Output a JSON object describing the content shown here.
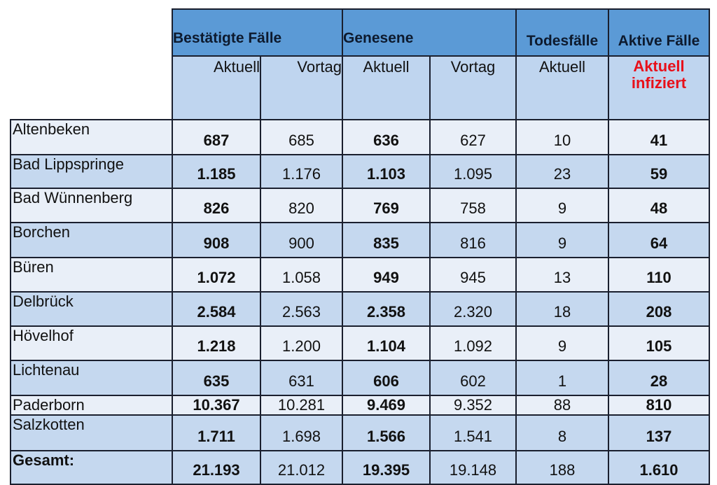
{
  "headers": {
    "group1": "Bestätigte Fälle",
    "group2": "Genesene",
    "group3": "Todesfälle",
    "group4": "Aktive Fälle",
    "sub": [
      "Aktuell",
      "Vortag",
      "Aktuell",
      "Vortag",
      "Aktuell"
    ],
    "active_sub_line1": "Aktuell",
    "active_sub_line2": "infiziert"
  },
  "colors": {
    "header": "#5b9ad6",
    "subheader": "#bfd5ef",
    "row_light": "#e9eff8",
    "row_mid": "#c5d8ef",
    "highlight": "#e8101a"
  },
  "rows": [
    {
      "name": "Altenbeken",
      "values": [
        "687",
        "685",
        "636",
        "627",
        "10",
        "41"
      ]
    },
    {
      "name": "Bad Lippspringe",
      "values": [
        "1.185",
        "1.176",
        "1.103",
        "1.095",
        "23",
        "59"
      ]
    },
    {
      "name": "Bad Wünnenberg",
      "values": [
        "826",
        "820",
        "769",
        "758",
        "9",
        "48"
      ]
    },
    {
      "name": "Borchen",
      "values": [
        "908",
        "900",
        "835",
        "816",
        "9",
        "64"
      ]
    },
    {
      "name": "Büren",
      "values": [
        "1.072",
        "1.058",
        "949",
        "945",
        "13",
        "110"
      ]
    },
    {
      "name": "Delbrück",
      "values": [
        "2.584",
        "2.563",
        "2.358",
        "2.320",
        "18",
        "208"
      ]
    },
    {
      "name": "Hövelhof",
      "values": [
        "1.218",
        "1.200",
        "1.104",
        "1.092",
        "9",
        "105"
      ]
    },
    {
      "name": "Lichtenau",
      "values": [
        "635",
        "631",
        "606",
        "602",
        "1",
        "28"
      ]
    },
    {
      "name": "Paderborn",
      "values": [
        "10.367",
        "10.281",
        "9.469",
        "9.352",
        "88",
        "810"
      ]
    },
    {
      "name": "Salzkotten",
      "values": [
        "1.711",
        "1.698",
        "1.566",
        "1.541",
        "8",
        "137"
      ]
    },
    {
      "name": "Gesamt:",
      "values": [
        "21.193",
        "21.012",
        "19.395",
        "19.148",
        "188",
        "1.610"
      ],
      "total": true
    }
  ]
}
